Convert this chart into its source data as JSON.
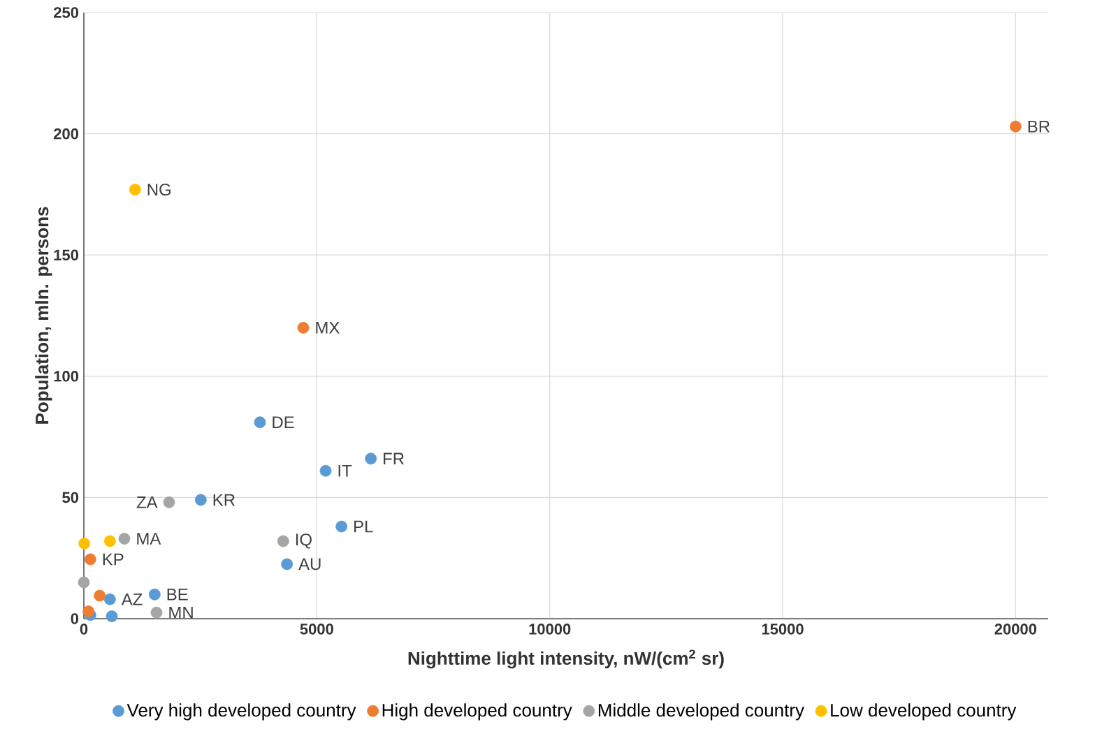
{
  "chart_data": {
    "type": "scatter",
    "xlabel": "Nighttime light intensity, nW/(cm$^{2}$ sr)",
    "ylabel": "Population, mln. persons",
    "xlim": [
      0,
      20700
    ],
    "ylim": [
      0,
      250
    ],
    "xticks": [
      0,
      5000,
      10000,
      15000,
      20000
    ],
    "yticks": [
      0,
      50,
      100,
      150,
      200,
      250
    ],
    "grid": true,
    "legend": "bottom",
    "marker": "circle",
    "series": [
      {
        "name": "Very high developed country",
        "color": "#5b9bd5",
        "x": [
          3780,
          5190,
          6160,
          2510,
          5530,
          4360,
          1520,
          560,
          600,
          140
        ],
        "values": [
          81,
          61,
          66,
          49,
          38,
          22.5,
          10,
          8,
          1,
          1.5
        ]
      },
      {
        "name": "High developed country",
        "color": "#ed7d31",
        "x": [
          20000,
          4710,
          140,
          340,
          100
        ],
        "values": [
          203,
          120,
          24.5,
          9.5,
          3
        ]
      },
      {
        "name": "Middle developed country",
        "color": "#a5a5a5",
        "x": [
          1830,
          870,
          4280,
          0,
          1560
        ],
        "values": [
          48,
          33,
          32,
          15,
          2.5
        ]
      },
      {
        "name": "Low developed country",
        "color": "#ffc000",
        "x": [
          1100,
          10,
          560
        ],
        "values": [
          177,
          31,
          32
        ]
      }
    ],
    "annotations": [
      {
        "text": "BR",
        "x": 20000,
        "y": 203
      },
      {
        "text": "NG",
        "x": 1100,
        "y": 177
      },
      {
        "text": "MX",
        "x": 4710,
        "y": 120
      },
      {
        "text": "DE",
        "x": 3780,
        "y": 81
      },
      {
        "text": "FR",
        "x": 6160,
        "y": 66
      },
      {
        "text": "IT",
        "x": 5190,
        "y": 61
      },
      {
        "text": "ZA",
        "x": 1830,
        "y": 48
      },
      {
        "text": "KR",
        "x": 2510,
        "y": 49
      },
      {
        "text": "PL",
        "x": 5530,
        "y": 38
      },
      {
        "text": "MA",
        "x": 870,
        "y": 33
      },
      {
        "text": "IQ",
        "x": 4280,
        "y": 32
      },
      {
        "text": "KP",
        "x": 140,
        "y": 24.5
      },
      {
        "text": "AU",
        "x": 4360,
        "y": 22.5
      },
      {
        "text": "AZ",
        "x": 560,
        "y": 8
      },
      {
        "text": "BE",
        "x": 1520,
        "y": 10
      },
      {
        "text": "MN",
        "x": 1560,
        "y": 2.5
      }
    ]
  }
}
